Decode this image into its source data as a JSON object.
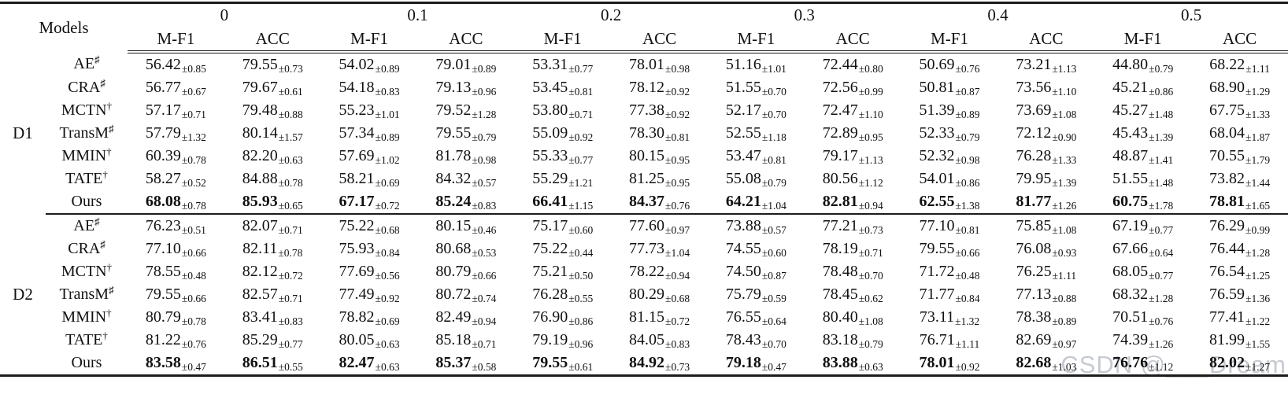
{
  "header": {
    "models_label": "Models",
    "rates": [
      "0",
      "0.1",
      "0.2",
      "0.3",
      "0.4",
      "0.5"
    ],
    "metrics": [
      "M-F1",
      "ACC"
    ]
  },
  "watermark": "CSDN @___Dream",
  "groups": [
    {
      "name": "D1",
      "rows": [
        {
          "model": "AE",
          "sup": "♯",
          "bold": false,
          "cells": [
            [
              "56.42",
              "±0.85"
            ],
            [
              "79.55",
              "±0.73"
            ],
            [
              "54.02",
              "±0.89"
            ],
            [
              "79.01",
              "±0.89"
            ],
            [
              "53.31",
              "±0.77"
            ],
            [
              "78.01",
              "±0.98"
            ],
            [
              "51.16",
              "±1.01"
            ],
            [
              "72.44",
              "±0.80"
            ],
            [
              "50.69",
              "±0.76"
            ],
            [
              "73.21",
              "±1.13"
            ],
            [
              "44.80",
              "±0.79"
            ],
            [
              "68.22",
              "±1.11"
            ]
          ]
        },
        {
          "model": "CRA",
          "sup": "♯",
          "bold": false,
          "cells": [
            [
              "56.77",
              "±0.67"
            ],
            [
              "79.67",
              "±0.61"
            ],
            [
              "54.18",
              "±0.83"
            ],
            [
              "79.13",
              "±0.96"
            ],
            [
              "53.45",
              "±0.81"
            ],
            [
              "78.12",
              "±0.92"
            ],
            [
              "51.55",
              "±0.70"
            ],
            [
              "72.56",
              "±0.99"
            ],
            [
              "50.81",
              "±0.87"
            ],
            [
              "73.56",
              "±1.10"
            ],
            [
              "45.21",
              "±0.86"
            ],
            [
              "68.90",
              "±1.29"
            ]
          ]
        },
        {
          "model": "MCTN",
          "sup": "†",
          "bold": false,
          "cells": [
            [
              "57.17",
              "±0.71"
            ],
            [
              "79.48",
              "±0.88"
            ],
            [
              "55.23",
              "±1.01"
            ],
            [
              "79.52",
              "±1.28"
            ],
            [
              "53.80",
              "±0.71"
            ],
            [
              "77.38",
              "±0.92"
            ],
            [
              "52.17",
              "±0.70"
            ],
            [
              "72.47",
              "±1.10"
            ],
            [
              "51.39",
              "±0.89"
            ],
            [
              "73.69",
              "±1.08"
            ],
            [
              "45.27",
              "±1.48"
            ],
            [
              "67.75",
              "±1.33"
            ]
          ]
        },
        {
          "model": "TransM",
          "sup": "♯",
          "bold": false,
          "cells": [
            [
              "57.79",
              "±1.32"
            ],
            [
              "80.14",
              "±1.57"
            ],
            [
              "57.34",
              "±0.89"
            ],
            [
              "79.55",
              "±0.79"
            ],
            [
              "55.09",
              "±0.92"
            ],
            [
              "78.30",
              "±0.81"
            ],
            [
              "52.55",
              "±1.18"
            ],
            [
              "72.89",
              "±0.95"
            ],
            [
              "52.33",
              "±0.79"
            ],
            [
              "72.12",
              "±0.90"
            ],
            [
              "45.43",
              "±1.39"
            ],
            [
              "68.04",
              "±1.87"
            ]
          ]
        },
        {
          "model": "MMIN",
          "sup": "†",
          "bold": false,
          "cells": [
            [
              "60.39",
              "±0.78"
            ],
            [
              "82.20",
              "±0.63"
            ],
            [
              "57.69",
              "±1.02"
            ],
            [
              "81.78",
              "±0.98"
            ],
            [
              "55.33",
              "±0.77"
            ],
            [
              "80.15",
              "±0.95"
            ],
            [
              "53.47",
              "±0.81"
            ],
            [
              "79.17",
              "±1.13"
            ],
            [
              "52.32",
              "±0.98"
            ],
            [
              "76.28",
              "±1.33"
            ],
            [
              "48.87",
              "±1.41"
            ],
            [
              "70.55",
              "±1.79"
            ]
          ]
        },
        {
          "model": "TATE",
          "sup": "†",
          "bold": false,
          "cells": [
            [
              "58.27",
              "±0.52"
            ],
            [
              "84.88",
              "±0.78"
            ],
            [
              "58.21",
              "±0.69"
            ],
            [
              "84.32",
              "±0.57"
            ],
            [
              "55.29",
              "±1.21"
            ],
            [
              "81.25",
              "±0.95"
            ],
            [
              "55.08",
              "±0.79"
            ],
            [
              "80.56",
              "±1.12"
            ],
            [
              "54.01",
              "±0.86"
            ],
            [
              "79.95",
              "±1.39"
            ],
            [
              "51.55",
              "±1.48"
            ],
            [
              "73.82",
              "±1.44"
            ]
          ]
        },
        {
          "model": "Ours",
          "sup": "",
          "bold": true,
          "cells": [
            [
              "68.08",
              "±0.78"
            ],
            [
              "85.93",
              "±0.65"
            ],
            [
              "67.17",
              "±0.72"
            ],
            [
              "85.24",
              "±0.83"
            ],
            [
              "66.41",
              "±1.15"
            ],
            [
              "84.37",
              "±0.76"
            ],
            [
              "64.21",
              "±1.04"
            ],
            [
              "82.81",
              "±0.94"
            ],
            [
              "62.55",
              "±1.38"
            ],
            [
              "81.77",
              "±1.26"
            ],
            [
              "60.75",
              "±1.78"
            ],
            [
              "78.81",
              "±1.65"
            ]
          ]
        }
      ]
    },
    {
      "name": "D2",
      "rows": [
        {
          "model": "AE",
          "sup": "♯",
          "bold": false,
          "cells": [
            [
              "76.23",
              "±0.51"
            ],
            [
              "82.07",
              "±0.71"
            ],
            [
              "75.22",
              "±0.68"
            ],
            [
              "80.15",
              "±0.46"
            ],
            [
              "75.17",
              "±0.60"
            ],
            [
              "77.60",
              "±0.97"
            ],
            [
              "73.88",
              "±0.57"
            ],
            [
              "77.21",
              "±0.73"
            ],
            [
              "77.10",
              "±0.81"
            ],
            [
              "75.85",
              "±1.08"
            ],
            [
              "67.19",
              "±0.77"
            ],
            [
              "76.29",
              "±0.99"
            ]
          ]
        },
        {
          "model": "CRA",
          "sup": "♯",
          "bold": false,
          "cells": [
            [
              "77.10",
              "±0.66"
            ],
            [
              "82.11",
              "±0.78"
            ],
            [
              "75.93",
              "±0.84"
            ],
            [
              "80.68",
              "±0.53"
            ],
            [
              "75.22",
              "±0.44"
            ],
            [
              "77.73",
              "±1.04"
            ],
            [
              "74.55",
              "±0.60"
            ],
            [
              "78.19",
              "±0.71"
            ],
            [
              "79.55",
              "±0.66"
            ],
            [
              "76.08",
              "±0.93"
            ],
            [
              "67.66",
              "±0.64"
            ],
            [
              "76.44",
              "±1.28"
            ]
          ]
        },
        {
          "model": "MCTN",
          "sup": "†",
          "bold": false,
          "cells": [
            [
              "78.55",
              "±0.48"
            ],
            [
              "82.12",
              "±0.72"
            ],
            [
              "77.69",
              "±0.56"
            ],
            [
              "80.79",
              "±0.66"
            ],
            [
              "75.21",
              "±0.50"
            ],
            [
              "78.22",
              "±0.94"
            ],
            [
              "74.50",
              "±0.87"
            ],
            [
              "78.48",
              "±0.70"
            ],
            [
              "71.72",
              "±0.48"
            ],
            [
              "76.25",
              "±1.11"
            ],
            [
              "68.05",
              "±0.77"
            ],
            [
              "76.54",
              "±1.25"
            ]
          ]
        },
        {
          "model": "TransM",
          "sup": "♯",
          "bold": false,
          "cells": [
            [
              "79.55",
              "±0.66"
            ],
            [
              "82.57",
              "±0.71"
            ],
            [
              "77.49",
              "±0.92"
            ],
            [
              "80.72",
              "±0.74"
            ],
            [
              "76.28",
              "±0.55"
            ],
            [
              "80.29",
              "±0.68"
            ],
            [
              "75.79",
              "±0.59"
            ],
            [
              "78.45",
              "±0.62"
            ],
            [
              "71.77",
              "±0.84"
            ],
            [
              "77.13",
              "±0.88"
            ],
            [
              "68.32",
              "±1.28"
            ],
            [
              "76.59",
              "±1.36"
            ]
          ]
        },
        {
          "model": "MMIN",
          "sup": "†",
          "bold": false,
          "cells": [
            [
              "80.79",
              "±0.78"
            ],
            [
              "83.41",
              "±0.83"
            ],
            [
              "78.82",
              "±0.69"
            ],
            [
              "82.49",
              "±0.94"
            ],
            [
              "76.90",
              "±0.86"
            ],
            [
              "81.15",
              "±0.72"
            ],
            [
              "76.55",
              "±0.64"
            ],
            [
              "80.40",
              "±1.08"
            ],
            [
              "73.11",
              "±1.32"
            ],
            [
              "78.38",
              "±0.89"
            ],
            [
              "70.51",
              "±0.76"
            ],
            [
              "77.41",
              "±1.22"
            ]
          ]
        },
        {
          "model": "TATE",
          "sup": "†",
          "bold": false,
          "cells": [
            [
              "81.22",
              "±0.76"
            ],
            [
              "85.29",
              "±0.77"
            ],
            [
              "80.05",
              "±0.63"
            ],
            [
              "85.18",
              "±0.71"
            ],
            [
              "79.19",
              "±0.96"
            ],
            [
              "84.05",
              "±0.83"
            ],
            [
              "78.43",
              "±0.70"
            ],
            [
              "83.18",
              "±0.79"
            ],
            [
              "76.71",
              "±1.11"
            ],
            [
              "82.69",
              "±0.97"
            ],
            [
              "74.39",
              "±1.26"
            ],
            [
              "81.99",
              "±1.55"
            ]
          ]
        },
        {
          "model": "Ours",
          "sup": "",
          "bold": true,
          "cells": [
            [
              "83.58",
              "±0.47"
            ],
            [
              "86.51",
              "±0.55"
            ],
            [
              "82.47",
              "±0.63"
            ],
            [
              "85.37",
              "±0.58"
            ],
            [
              "79.55",
              "±0.61"
            ],
            [
              "84.92",
              "±0.73"
            ],
            [
              "79.18",
              "±0.47"
            ],
            [
              "83.88",
              "±0.63"
            ],
            [
              "78.01",
              "±0.92"
            ],
            [
              "82.68",
              "±1.03"
            ],
            [
              "76.76",
              "±1.12"
            ],
            [
              "82.02",
              "±1.27"
            ]
          ]
        }
      ]
    }
  ]
}
